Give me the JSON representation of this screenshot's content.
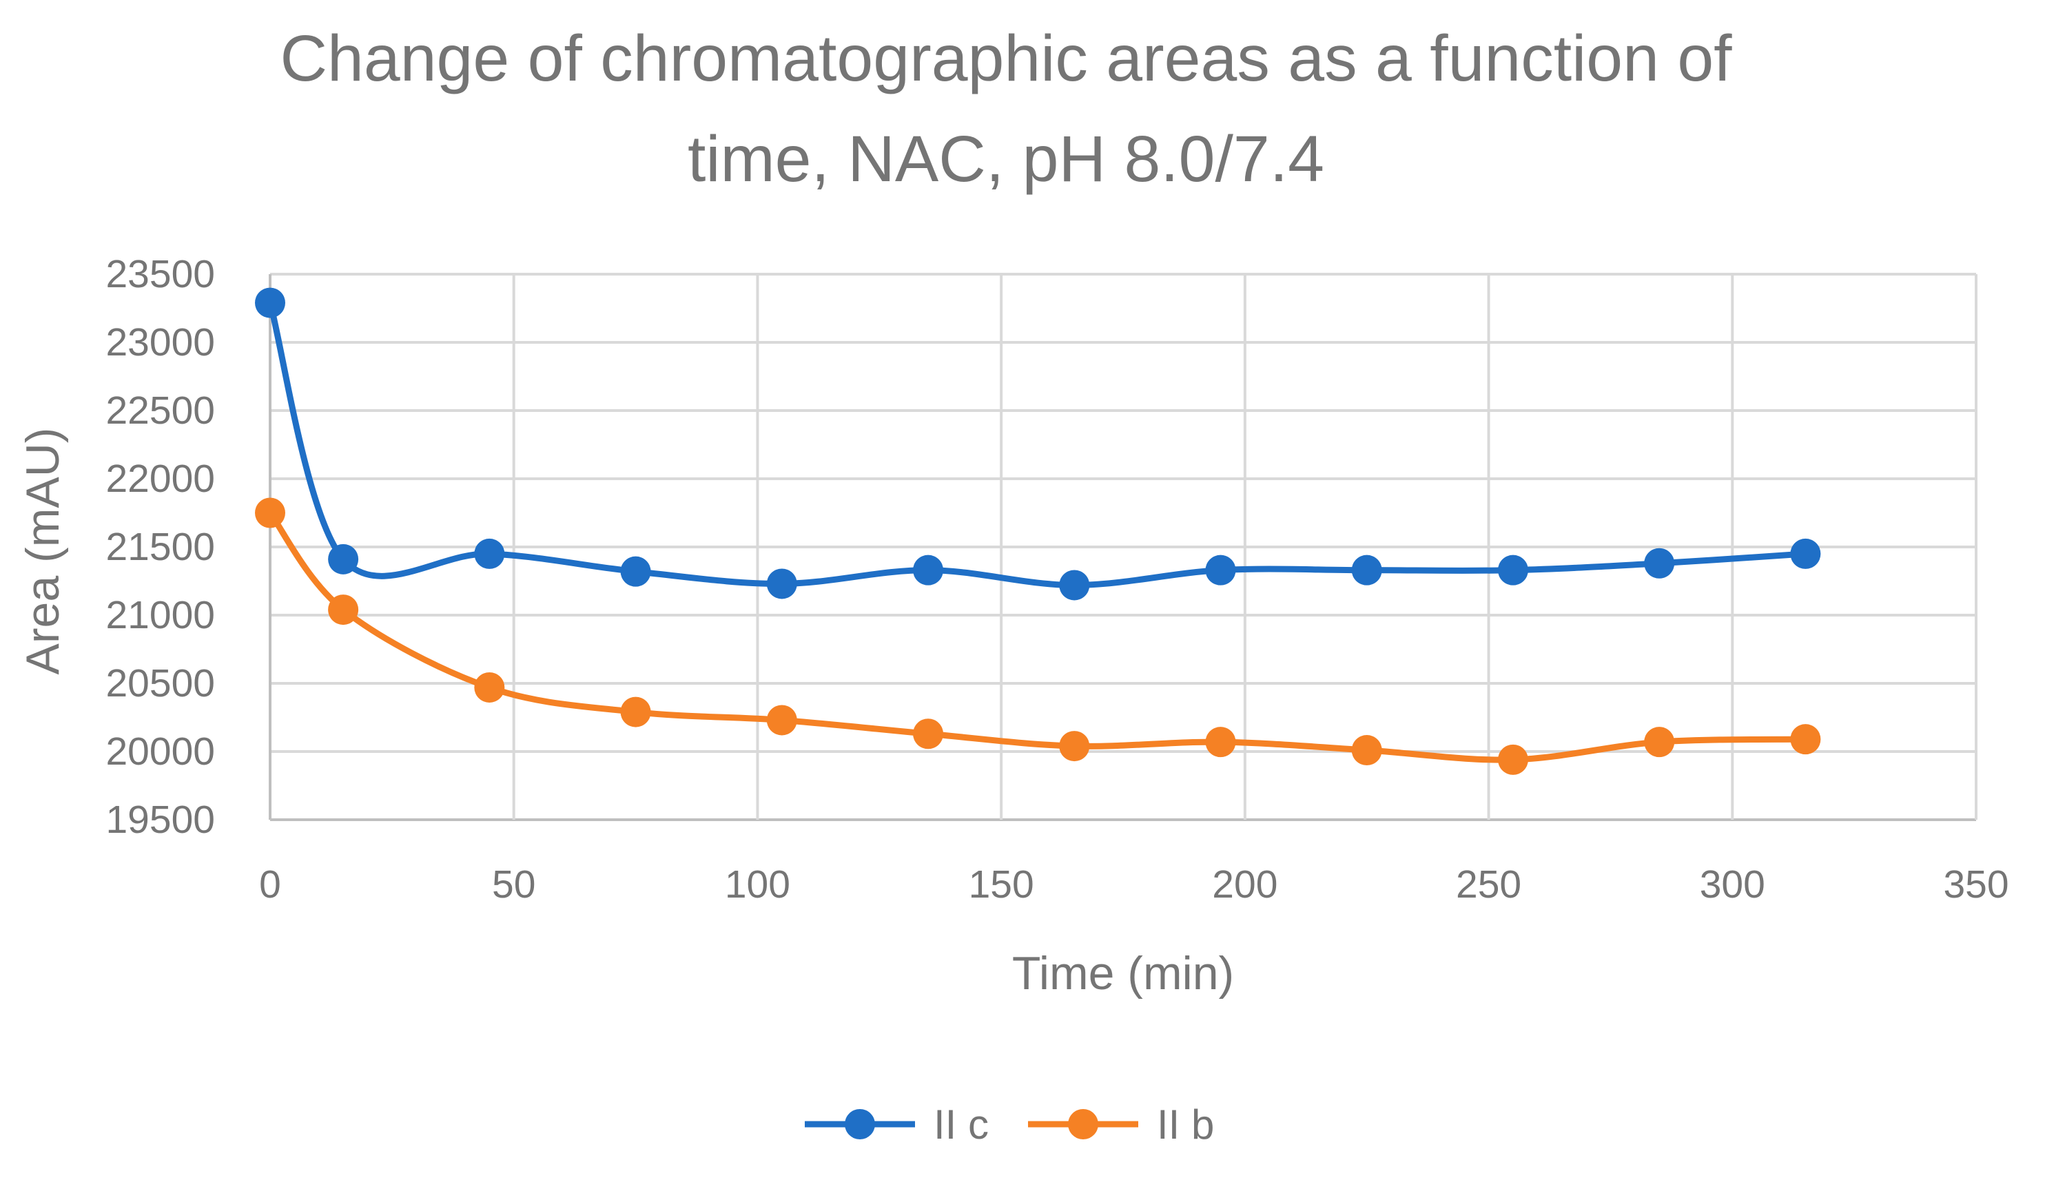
{
  "chart_data": {
    "type": "line",
    "title_lines": [
      "Change of chromatographic areas as a function of",
      "time, NAC, pH 8.0/7.4"
    ],
    "xlabel": "Time (min)",
    "ylabel": "Area (mAU)",
    "xlim": [
      0,
      350
    ],
    "ylim": [
      19500,
      23500
    ],
    "xticks": [
      0,
      50,
      100,
      150,
      200,
      250,
      300,
      350
    ],
    "yticks": [
      19500,
      20000,
      20500,
      21000,
      21500,
      22000,
      22500,
      23000,
      23500
    ],
    "grid": true,
    "legend_position": "bottom-center",
    "x": [
      0,
      15,
      45,
      75,
      105,
      135,
      165,
      195,
      225,
      255,
      285,
      315
    ],
    "series": [
      {
        "name": "II c",
        "color": "#1f6fc6",
        "values": [
          23290,
          21410,
          21450,
          21320,
          21230,
          21330,
          21220,
          21330,
          21330,
          21330,
          21380,
          21450
        ]
      },
      {
        "name": "II b",
        "color": "#f58124",
        "values": [
          21750,
          21040,
          20470,
          20290,
          20230,
          20130,
          20040,
          20070,
          20010,
          19940,
          20070,
          20090
        ]
      }
    ]
  }
}
